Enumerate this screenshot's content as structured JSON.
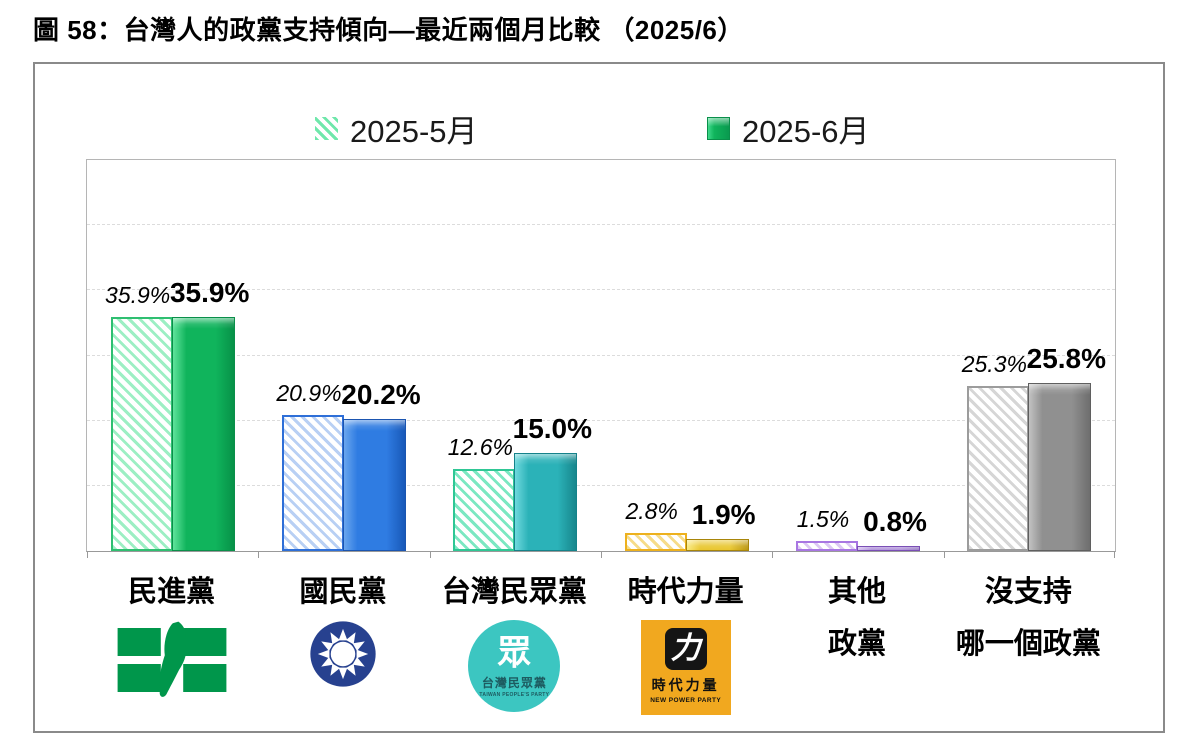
{
  "title": "圖 58：台灣人的政黨支持傾向—最近兩個月比較 （2025/6）",
  "legend": {
    "items": [
      {
        "label": "2025-5月",
        "swatch": "hatched",
        "color": "#6fe7ab"
      },
      {
        "label": "2025-6月",
        "swatch": "solid",
        "color": "#10b45c"
      }
    ]
  },
  "chart_data": {
    "type": "bar",
    "title": "台灣人的政黨支持傾向—最近兩個月比較",
    "categories": [
      "民進黨",
      "國民黨",
      "台灣民眾黨",
      "時代力量",
      "其他政黨",
      "沒支持哪一個政黨"
    ],
    "series": [
      {
        "name": "2025-5月",
        "style": "hatched",
        "values": [
          35.9,
          20.9,
          12.6,
          2.8,
          1.5,
          25.3
        ],
        "labels": [
          "35.9%",
          "20.9%",
          "12.6%",
          "2.8%",
          "1.5%",
          "25.3%"
        ]
      },
      {
        "name": "2025-6月",
        "style": "solid",
        "values": [
          35.9,
          20.2,
          15.0,
          1.9,
          0.8,
          25.8
        ],
        "labels": [
          "35.9%",
          "20.2%",
          "15.0%",
          "1.9%",
          "0.8%",
          "25.8%"
        ]
      }
    ],
    "xlabel": "",
    "ylabel": "",
    "ylim": [
      0,
      60
    ],
    "grid": {
      "step": 10,
      "style": "dashed",
      "color": "#dcdcdc"
    },
    "legend_position": "top"
  },
  "groups": [
    {
      "id": "dpp",
      "label_lines": [
        "民進黨"
      ],
      "colors": {
        "border": "#2fbf71",
        "hatch": "#9defc4",
        "solid": "#10b45c",
        "solid_light": "#5fe39b",
        "solid_dark": "#079148",
        "edge": "#0a8f4a"
      }
    },
    {
      "id": "kmt",
      "label_lines": [
        "國民黨"
      ],
      "colors": {
        "border": "#2e6fd8",
        "hatch": "#b9d0f4",
        "solid": "#2f7ce2",
        "solid_light": "#6aa6ee",
        "solid_dark": "#1858b8",
        "edge": "#1b55b0"
      }
    },
    {
      "id": "tpp",
      "label_lines": [
        "台灣民眾黨"
      ],
      "colors": {
        "border": "#2fc795",
        "hatch": "#7ce8c2",
        "solid": "#2bb2b8",
        "solid_light": "#6fd9dd",
        "solid_dark": "#17868c",
        "edge": "#15828a"
      }
    },
    {
      "id": "npp",
      "label_lines": [
        "時代力量"
      ],
      "colors": {
        "border": "#edb11e",
        "hatch": "#f6dc8a",
        "solid": "#e8c52a",
        "solid_light": "#f9e878",
        "solid_dark": "#b9930a",
        "edge": "#a8850a"
      }
    },
    {
      "id": "other",
      "label_lines": [
        "其他",
        "政黨"
      ],
      "colors": {
        "border": "#a876e2",
        "hatch": "#dcc8f4",
        "solid": "#8a5ec8",
        "solid_light": "#c0a0e8",
        "solid_dark": "#6a3fa8",
        "edge": "#7a4fb5"
      }
    },
    {
      "id": "none",
      "label_lines": [
        "沒支持",
        "哪一個政黨"
      ],
      "colors": {
        "border": "#9c9c9c",
        "hatch": "#d6d6d6",
        "solid": "#909090",
        "solid_light": "#c2c2c2",
        "solid_dark": "#6e6e6e",
        "edge": "#5f5f5f"
      }
    }
  ],
  "logos": {
    "dpp": {
      "name": "民主進步黨黨旗",
      "green": "#00964b"
    },
    "kmt": {
      "name": "中國國民黨黨徽",
      "blue": "#27418f"
    },
    "tpp": {
      "glyph": "眾",
      "name_zh": "台灣民眾黨",
      "name_en": "TAIWAN PEOPLE'S PARTY",
      "teal": "#3cc6c1"
    },
    "npp": {
      "glyph": "力",
      "name_zh": "時代力量",
      "name_en": "NEW POWER PARTY",
      "yellow": "#f1a81f"
    }
  }
}
